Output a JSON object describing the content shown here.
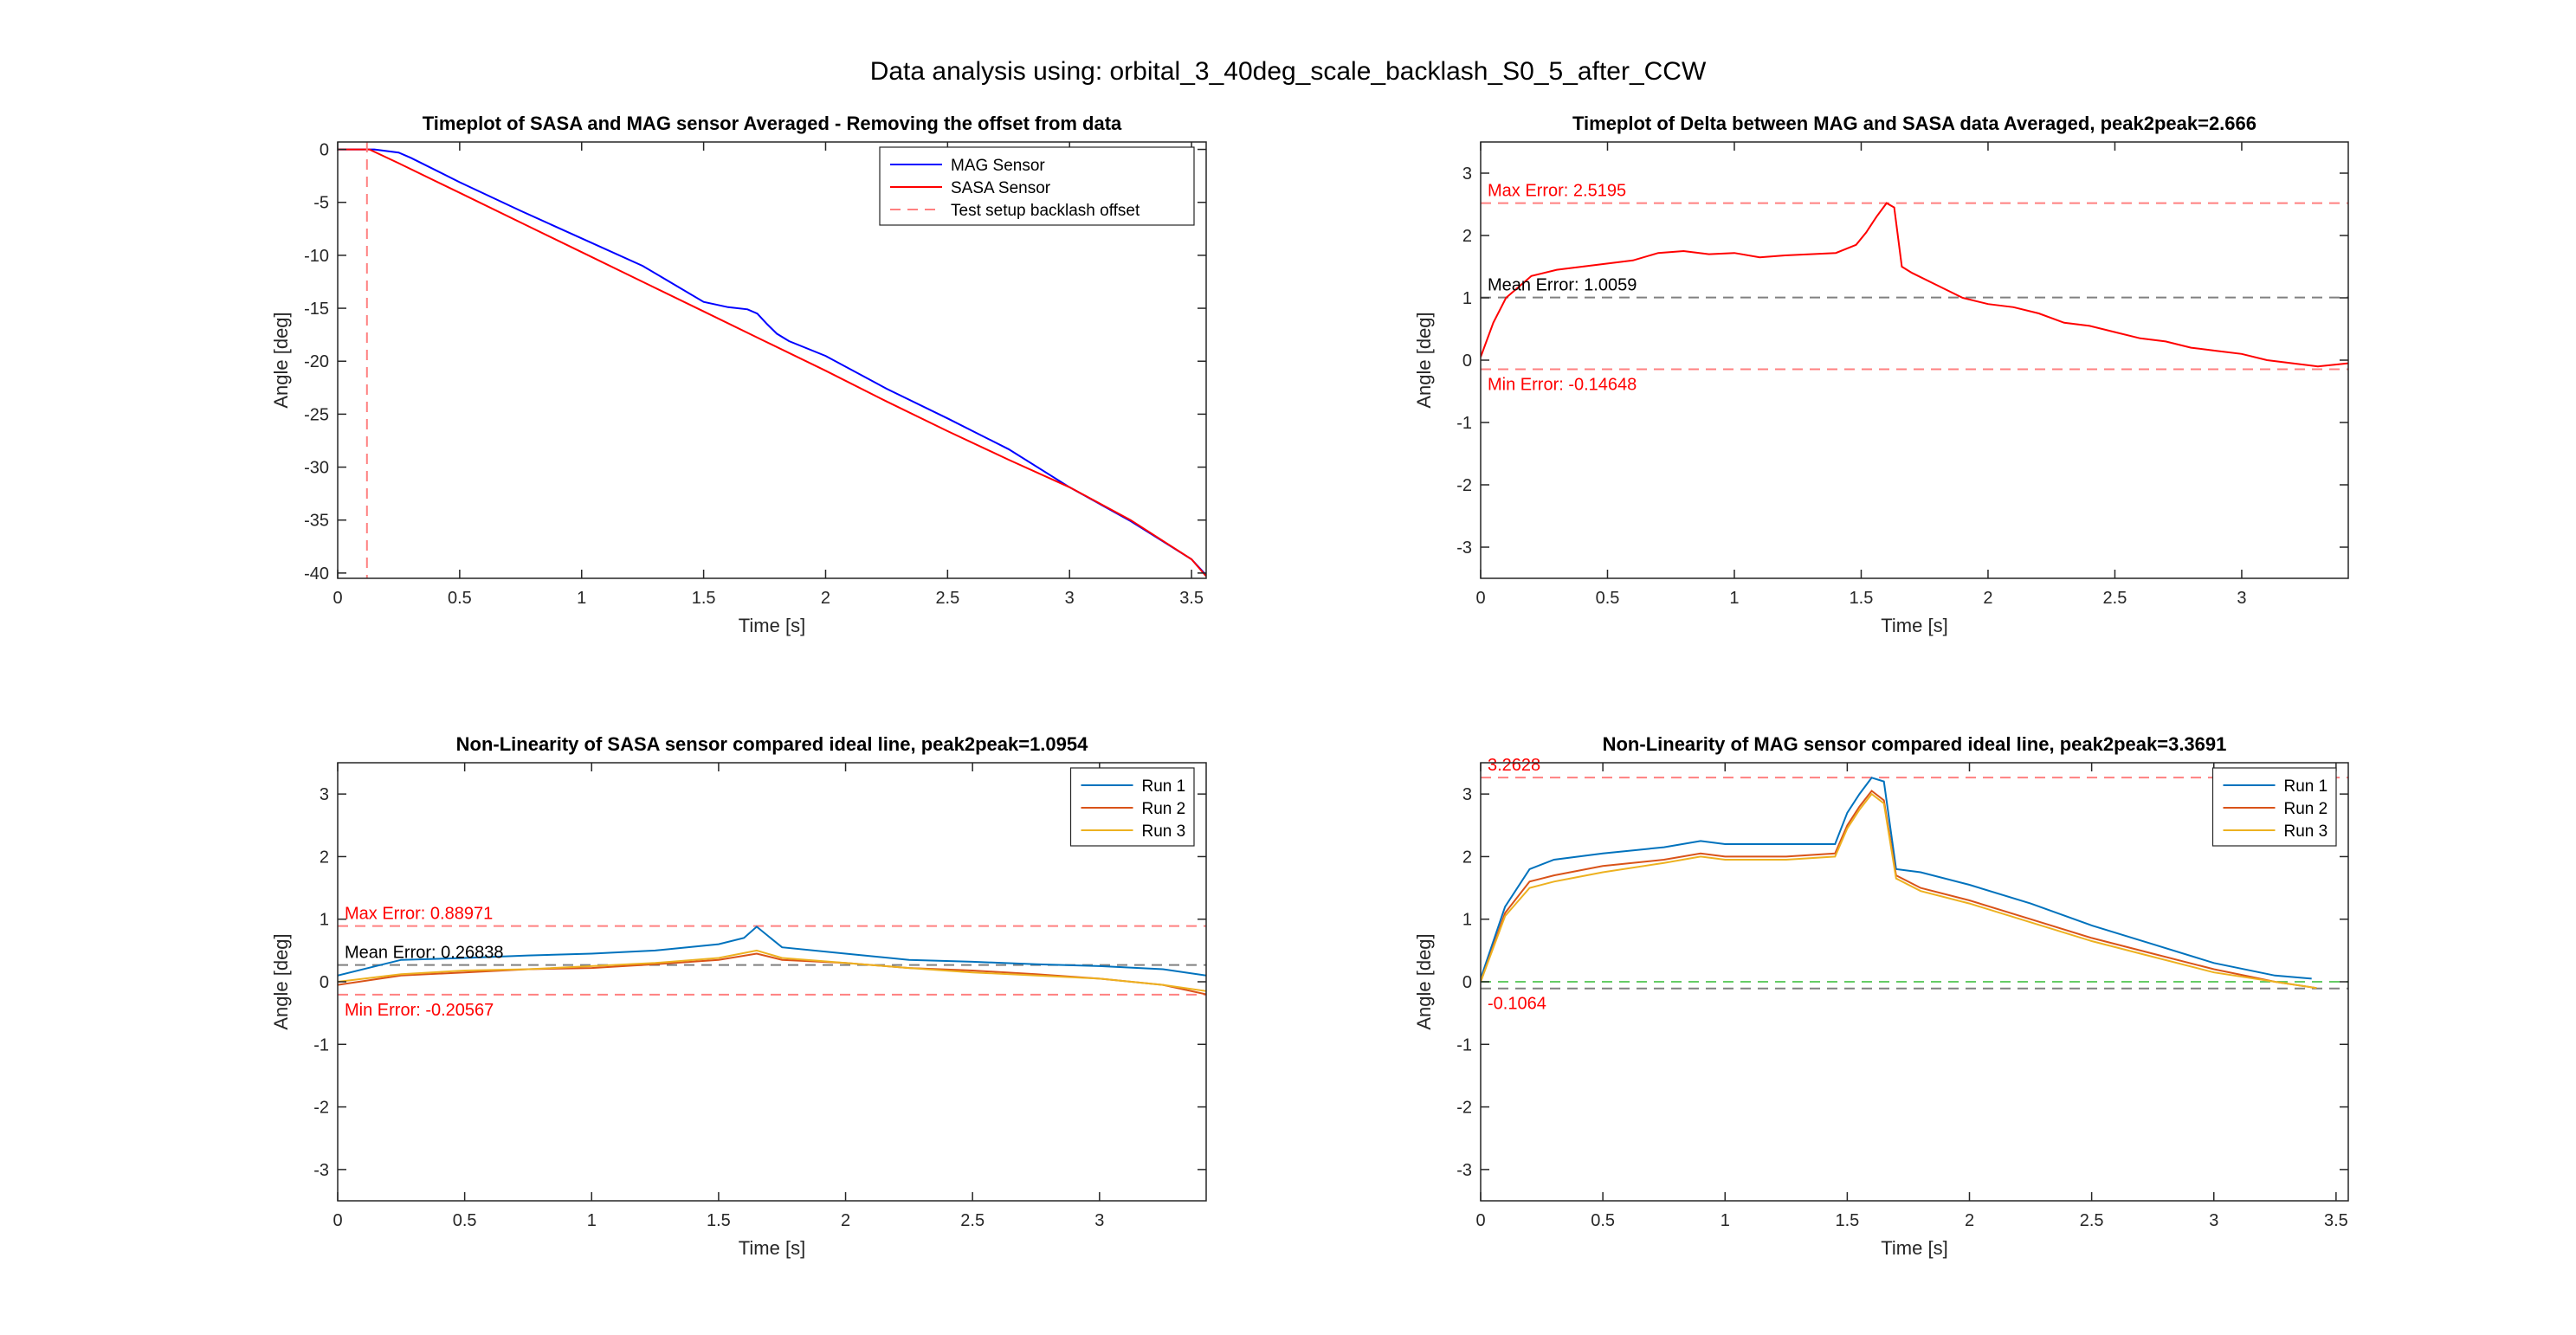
{
  "figure_title": "Data analysis using: orbital_3_40deg_scale_backlash_S0_5_after_CCW",
  "colors": {
    "mag": "#0000ff",
    "sasa": "#ff0000",
    "offset": "#ff8080",
    "run1": "#0072bd",
    "run2": "#d95319",
    "run3": "#edb120",
    "mean_line": "#808080",
    "green_line": "#66cc66"
  },
  "chart_data": [
    {
      "type": "line",
      "title": "Timeplot of SASA and MAG sensor Averaged - Removing the offset from data",
      "xlabel": "Time [s]",
      "ylabel": "Angle [deg]",
      "xlim": [
        0,
        3.56
      ],
      "ylim": [
        -40.5,
        0.7
      ],
      "xticks": [
        0,
        0.5,
        1,
        1.5,
        2,
        2.5,
        3,
        3.5
      ],
      "xtick_labels": [
        "0",
        "0.5",
        "1",
        "1.5",
        "2",
        "2.5",
        "3",
        "3.5"
      ],
      "yticks": [
        0,
        -5,
        -10,
        -15,
        -20,
        -25,
        -30,
        -35,
        -40
      ],
      "ytick_labels": [
        "0",
        "-5",
        "-10",
        "-15",
        "-20",
        "-25",
        "-30",
        "-35",
        "-40"
      ],
      "legend": [
        "MAG Sensor",
        "SASA Sensor",
        "Test setup backlash offset"
      ],
      "legend_location": "top-right",
      "series": [
        {
          "name": "MAG Sensor",
          "color": "#0000ff",
          "x": [
            0,
            0.15,
            0.25,
            0.3,
            0.5,
            0.75,
            1.0,
            1.25,
            1.5,
            1.6,
            1.68,
            1.72,
            1.76,
            1.8,
            1.85,
            2.0,
            2.25,
            2.5,
            2.75,
            3.0,
            3.25,
            3.5,
            3.56
          ],
          "y": [
            0,
            0,
            -0.3,
            -0.8,
            -3.1,
            -5.8,
            -8.4,
            -11.0,
            -14.4,
            -14.9,
            -15.1,
            -15.5,
            -16.5,
            -17.4,
            -18.1,
            -19.5,
            -22.6,
            -25.4,
            -28.3,
            -31.9,
            -35.1,
            -38.7,
            -40.2
          ]
        },
        {
          "name": "SASA Sensor",
          "color": "#ff0000",
          "x": [
            0,
            0.13,
            0.25,
            0.5,
            0.75,
            1.0,
            1.25,
            1.5,
            1.75,
            2.0,
            2.25,
            2.5,
            2.75,
            3.0,
            3.25,
            3.5,
            3.56
          ],
          "y": [
            0,
            0,
            -1.3,
            -4.1,
            -6.9,
            -9.7,
            -12.5,
            -15.3,
            -18.1,
            -20.9,
            -23.8,
            -26.6,
            -29.3,
            -31.9,
            -35.0,
            -38.7,
            -40.3
          ]
        },
        {
          "name": "Test setup backlash offset",
          "color": "#ff8080",
          "style": "dashed",
          "x": [
            0.12,
            0.12
          ],
          "y": [
            0.7,
            -40.5
          ]
        }
      ]
    },
    {
      "type": "line",
      "title": "Timeplot of Delta between MAG and SASA data Averaged, peak2peak=2.666",
      "xlabel": "Time [s]",
      "ylabel": "Angle [deg]",
      "xlim": [
        0,
        3.42
      ],
      "ylim": [
        -3.5,
        3.5
      ],
      "xticks": [
        0,
        0.5,
        1,
        1.5,
        2,
        2.5,
        3
      ],
      "xtick_labels": [
        "0",
        "0.5",
        "1",
        "1.5",
        "2",
        "2.5",
        "3"
      ],
      "yticks": [
        3,
        2,
        1,
        0,
        -1,
        -2,
        -3
      ],
      "ytick_labels": [
        "3",
        "2",
        "1",
        "0",
        "-1",
        "-2",
        "-3"
      ],
      "reference_lines": [
        {
          "label": "Max Error: 2.5195",
          "y": 2.5195,
          "color": "#ff8080",
          "text_color": "#ff0000"
        },
        {
          "label": "Mean Error: 1.0059",
          "y": 1.0059,
          "color": "#808080",
          "text_color": "#000000"
        },
        {
          "label": "Min Error: -0.14648",
          "y": -0.14648,
          "color": "#ff8080",
          "text_color": "#ff0000"
        }
      ],
      "series": [
        {
          "name": "Delta",
          "color": "#ff0000",
          "x": [
            0,
            0.05,
            0.1,
            0.2,
            0.3,
            0.4,
            0.5,
            0.6,
            0.7,
            0.8,
            0.9,
            1.0,
            1.1,
            1.2,
            1.3,
            1.4,
            1.48,
            1.52,
            1.56,
            1.6,
            1.63,
            1.66,
            1.7,
            1.8,
            1.9,
            2.0,
            2.1,
            2.2,
            2.3,
            2.4,
            2.5,
            2.6,
            2.7,
            2.8,
            2.9,
            3.0,
            3.1,
            3.2,
            3.3,
            3.42
          ],
          "y": [
            0.05,
            0.6,
            1.0,
            1.35,
            1.45,
            1.5,
            1.55,
            1.6,
            1.72,
            1.75,
            1.7,
            1.72,
            1.65,
            1.68,
            1.7,
            1.72,
            1.85,
            2.05,
            2.3,
            2.52,
            2.45,
            1.5,
            1.4,
            1.2,
            1.0,
            0.9,
            0.85,
            0.75,
            0.6,
            0.55,
            0.45,
            0.35,
            0.3,
            0.2,
            0.15,
            0.1,
            0.0,
            -0.05,
            -0.1,
            -0.05
          ]
        }
      ]
    },
    {
      "type": "line",
      "title": "Non-Linearity of SASA sensor compared ideal line, peak2peak=1.0954",
      "xlabel": "Time [s]",
      "ylabel": "Angle [deg]",
      "xlim": [
        0,
        3.42
      ],
      "ylim": [
        -3.5,
        3.5
      ],
      "xticks": [
        0,
        0.5,
        1,
        1.5,
        2,
        2.5,
        3
      ],
      "xtick_labels": [
        "0",
        "0.5",
        "1",
        "1.5",
        "2",
        "2.5",
        "3"
      ],
      "yticks": [
        3,
        2,
        1,
        0,
        -1,
        -2,
        -3
      ],
      "ytick_labels": [
        "3",
        "2",
        "1",
        "0",
        "-1",
        "-2",
        "-3"
      ],
      "legend": [
        "Run 1",
        "Run 2",
        "Run 3"
      ],
      "legend_location": "top-right",
      "reference_lines": [
        {
          "label": "Max Error: 0.88971",
          "y": 0.88971,
          "color": "#ff8080",
          "text_color": "#ff0000"
        },
        {
          "label": "Mean Error: 0.26838",
          "y": 0.26838,
          "color": "#808080",
          "text_color": "#000000"
        },
        {
          "label": "Min Error: -0.20567",
          "y": -0.20567,
          "color": "#ff8080",
          "text_color": "#ff0000"
        }
      ],
      "series": [
        {
          "name": "Run 1",
          "color": "#0072bd",
          "x": [
            0,
            0.25,
            0.5,
            0.75,
            1.0,
            1.25,
            1.5,
            1.6,
            1.65,
            1.75,
            2.0,
            2.25,
            2.5,
            2.75,
            3.0,
            3.25,
            3.42
          ],
          "y": [
            0.1,
            0.35,
            0.38,
            0.42,
            0.45,
            0.5,
            0.6,
            0.7,
            0.88,
            0.55,
            0.45,
            0.35,
            0.32,
            0.28,
            0.25,
            0.2,
            0.1
          ]
        },
        {
          "name": "Run 2",
          "color": "#d95319",
          "x": [
            0,
            0.25,
            0.5,
            0.75,
            1.0,
            1.25,
            1.5,
            1.65,
            1.75,
            2.0,
            2.25,
            2.5,
            2.75,
            3.0,
            3.25,
            3.42
          ],
          "y": [
            -0.05,
            0.1,
            0.15,
            0.2,
            0.22,
            0.28,
            0.35,
            0.45,
            0.35,
            0.3,
            0.22,
            0.18,
            0.12,
            0.05,
            -0.05,
            -0.2
          ]
        },
        {
          "name": "Run 3",
          "color": "#edb120",
          "x": [
            0,
            0.25,
            0.5,
            0.75,
            1.0,
            1.25,
            1.5,
            1.65,
            1.75,
            2.0,
            2.25,
            2.5,
            2.75,
            3.0,
            3.25,
            3.42
          ],
          "y": [
            0.0,
            0.12,
            0.18,
            0.2,
            0.25,
            0.3,
            0.38,
            0.5,
            0.38,
            0.3,
            0.22,
            0.15,
            0.1,
            0.05,
            -0.05,
            -0.15
          ]
        }
      ]
    },
    {
      "type": "line",
      "title": "Non-Linearity of MAG sensor compared ideal line, peak2peak=3.3691",
      "xlabel": "Time [s]",
      "ylabel": "Angle [deg]",
      "xlim": [
        0,
        3.55
      ],
      "ylim": [
        -3.5,
        3.5
      ],
      "xticks": [
        0,
        0.5,
        1,
        1.5,
        2,
        2.5,
        3,
        3.5
      ],
      "xtick_labels": [
        "0",
        "0.5",
        "1",
        "1.5",
        "2",
        "2.5",
        "3",
        "3.5"
      ],
      "yticks": [
        3,
        2,
        1,
        0,
        -1,
        -2,
        -3
      ],
      "ytick_labels": [
        "3",
        "2",
        "1",
        "0",
        "-1",
        "-2",
        "-3"
      ],
      "legend": [
        "Run 1",
        "Run 2",
        "Run 3"
      ],
      "legend_location": "top-right",
      "reference_lines": [
        {
          "label": "3.2628",
          "y": 3.2628,
          "color": "#ff8080",
          "text_color": "#ff0000"
        },
        {
          "label": "",
          "y": 0.0,
          "color": "#66cc66",
          "text_color": "#000000"
        },
        {
          "label": "-0.1064",
          "y": -0.1064,
          "color": "#808080",
          "text_color": "#ff0000"
        }
      ],
      "series": [
        {
          "name": "Run 1",
          "color": "#0072bd",
          "x": [
            0,
            0.1,
            0.2,
            0.3,
            0.5,
            0.75,
            0.9,
            1.0,
            1.25,
            1.45,
            1.5,
            1.55,
            1.6,
            1.65,
            1.7,
            1.8,
            2.0,
            2.25,
            2.5,
            2.75,
            3.0,
            3.25,
            3.4
          ],
          "y": [
            0.05,
            1.2,
            1.8,
            1.95,
            2.05,
            2.15,
            2.25,
            2.2,
            2.2,
            2.2,
            2.7,
            3.0,
            3.26,
            3.2,
            1.8,
            1.75,
            1.55,
            1.25,
            0.9,
            0.6,
            0.3,
            0.1,
            0.05
          ]
        },
        {
          "name": "Run 2",
          "color": "#d95319",
          "x": [
            0,
            0.1,
            0.2,
            0.3,
            0.5,
            0.75,
            0.9,
            1.0,
            1.25,
            1.45,
            1.5,
            1.55,
            1.6,
            1.65,
            1.7,
            1.8,
            2.0,
            2.25,
            2.5,
            2.75,
            3.0,
            3.25,
            3.42
          ],
          "y": [
            0.0,
            1.1,
            1.6,
            1.7,
            1.85,
            1.95,
            2.05,
            2.0,
            2.0,
            2.05,
            2.5,
            2.8,
            3.05,
            2.9,
            1.7,
            1.5,
            1.3,
            1.0,
            0.7,
            0.45,
            0.2,
            0.0,
            -0.1
          ]
        },
        {
          "name": "Run 3",
          "color": "#edb120",
          "x": [
            0,
            0.1,
            0.2,
            0.3,
            0.5,
            0.75,
            0.9,
            1.0,
            1.25,
            1.45,
            1.5,
            1.55,
            1.6,
            1.65,
            1.7,
            1.8,
            2.0,
            2.25,
            2.5,
            2.75,
            3.0,
            3.25,
            3.42
          ],
          "y": [
            0.0,
            1.05,
            1.5,
            1.6,
            1.75,
            1.9,
            2.0,
            1.95,
            1.95,
            2.0,
            2.45,
            2.75,
            3.0,
            2.85,
            1.65,
            1.45,
            1.25,
            0.95,
            0.65,
            0.4,
            0.15,
            0.0,
            -0.1
          ]
        }
      ]
    }
  ]
}
